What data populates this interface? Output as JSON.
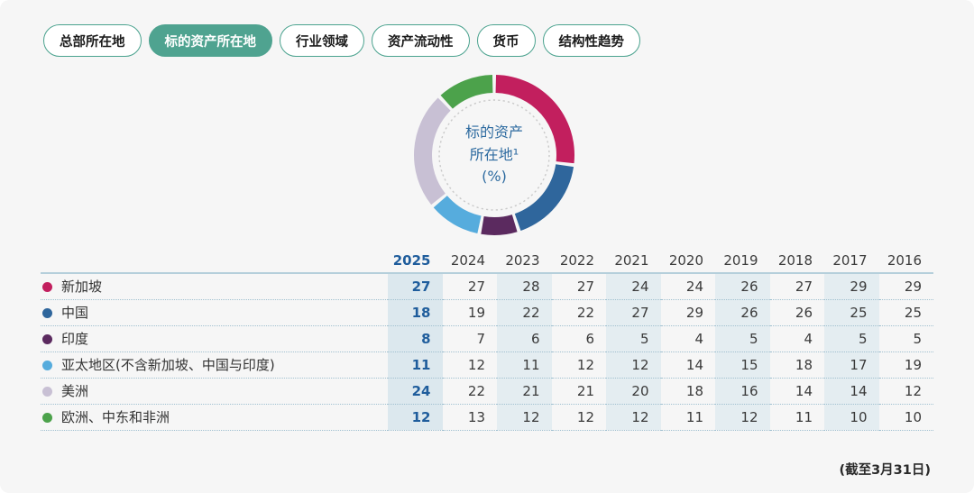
{
  "tabs": {
    "items": [
      {
        "label": "总部所在地",
        "active": false
      },
      {
        "label": "标的资产所在地",
        "active": true
      },
      {
        "label": "行业领域",
        "active": false
      },
      {
        "label": "资产流动性",
        "active": false
      },
      {
        "label": "货币",
        "active": false
      },
      {
        "label": "结构性趋势",
        "active": false
      }
    ]
  },
  "chart_data": {
    "type": "pie",
    "donut": true,
    "start_angle_deg": 0,
    "direction": "clockwise",
    "center_lines": {
      "0": "标的资产",
      "1": "所在地¹",
      "2": "(%)"
    },
    "unit": "%",
    "categories": [
      "新加坡",
      "中国",
      "印度",
      "亚太地区(不含新加坡、中国与印度)",
      "美洲",
      "欧洲、中东和非洲"
    ],
    "values": [
      27,
      18,
      8,
      11,
      24,
      12
    ],
    "colors": [
      "#C21F5E",
      "#2F669C",
      "#5B2A5F",
      "#56ACDD",
      "#C8C0D4",
      "#4CA24B"
    ]
  },
  "table": {
    "years": [
      "2025",
      "2024",
      "2023",
      "2022",
      "2021",
      "2020",
      "2019",
      "2018",
      "2017",
      "2016"
    ],
    "current_year": "2025",
    "shaded_years": [
      "2025",
      "2023",
      "2021",
      "2019",
      "2017"
    ],
    "rows": [
      {
        "label": "新加坡",
        "color": "#C21F5E",
        "values": [
          27,
          27,
          28,
          27,
          24,
          24,
          26,
          27,
          29,
          29
        ]
      },
      {
        "label": "中国",
        "color": "#2F669C",
        "values": [
          18,
          19,
          22,
          22,
          27,
          29,
          26,
          26,
          25,
          25
        ]
      },
      {
        "label": "印度",
        "color": "#5B2A5F",
        "values": [
          8,
          7,
          6,
          6,
          5,
          4,
          5,
          4,
          5,
          5
        ]
      },
      {
        "label": "亚太地区(不含新加坡、中国与印度)",
        "color": "#56ACDD",
        "values": [
          11,
          12,
          11,
          12,
          12,
          14,
          15,
          18,
          17,
          19
        ]
      },
      {
        "label": "美洲",
        "color": "#C8C0D4",
        "values": [
          24,
          22,
          21,
          21,
          20,
          18,
          16,
          14,
          14,
          12
        ]
      },
      {
        "label": "欧洲、中东和非洲",
        "color": "#4CA24B",
        "values": [
          12,
          13,
          12,
          12,
          12,
          11,
          12,
          11,
          10,
          10
        ]
      }
    ]
  },
  "footer": {
    "as_of": "(截至3月31日)"
  },
  "theme": {
    "accent_teal": "#4FA390",
    "current_year_blue": "#1F5D9C",
    "center_text_blue": "#2E6BA0",
    "background": "#F6F6F6"
  }
}
